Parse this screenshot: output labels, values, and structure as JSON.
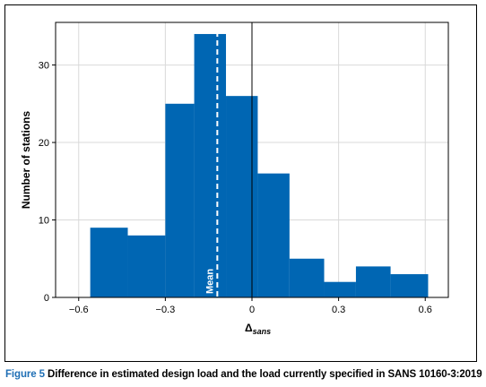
{
  "figure": {
    "caption_label": "Figure 5",
    "caption_text": "Difference in estimated design load and the load currently specified in SANS 10160-3:2019"
  },
  "colors": {
    "bar_fill": "#0066b3",
    "grid": "#d9d9d9",
    "mean_line": "#ffffff",
    "caption_label": "#1f6fb5"
  },
  "chart_data": {
    "type": "bar",
    "subtype": "histogram",
    "title": "",
    "xlabel_main": "Δ",
    "xlabel_sub": "sans",
    "ylabel": "Number of stations",
    "xlim": [
      -0.68,
      0.68
    ],
    "ylim": [
      0,
      35.5
    ],
    "xticks": [
      -0.6,
      -0.3,
      0,
      0.3,
      0.6
    ],
    "xtick_labels": [
      "−0.6",
      "−0.3",
      "0",
      "0.3",
      "0.6"
    ],
    "yticks": [
      0,
      10,
      20,
      30
    ],
    "ytick_labels": [
      "0",
      "10",
      "20",
      "30"
    ],
    "grid": true,
    "bins": [
      {
        "x0": -0.56,
        "x1": -0.43,
        "count": 9
      },
      {
        "x0": -0.43,
        "x1": -0.3,
        "count": 8
      },
      {
        "x0": -0.3,
        "x1": -0.2,
        "count": 25
      },
      {
        "x0": -0.2,
        "x1": -0.09,
        "count": 34
      },
      {
        "x0": -0.09,
        "x1": 0.02,
        "count": 26
      },
      {
        "x0": 0.02,
        "x1": 0.13,
        "count": 16
      },
      {
        "x0": 0.13,
        "x1": 0.25,
        "count": 5
      },
      {
        "x0": 0.25,
        "x1": 0.36,
        "count": 2
      },
      {
        "x0": 0.36,
        "x1": 0.48,
        "count": 4
      },
      {
        "x0": 0.48,
        "x1": 0.61,
        "count": 3
      }
    ],
    "mean_x": -0.12,
    "mean_label": "Mean",
    "zero_line_x": 0
  }
}
